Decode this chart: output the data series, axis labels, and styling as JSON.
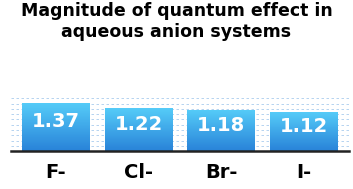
{
  "categories": [
    "F-",
    "Cl-",
    "Br-",
    "I-"
  ],
  "values": [
    1.37,
    1.22,
    1.18,
    1.12
  ],
  "bar_color_top": "#55ccf8",
  "bar_color_bottom": "#2882d8",
  "title_line1": "Magnitude of quantum effect in",
  "title_line2": "aqueous anion systems",
  "title_fontsize": 12.5,
  "value_fontsize": 14,
  "tick_fontsize": 14,
  "ylim": [
    0,
    1.5
  ],
  "background_color": "#ffffff",
  "grid_color": "#aaccee",
  "bar_width": 0.82
}
